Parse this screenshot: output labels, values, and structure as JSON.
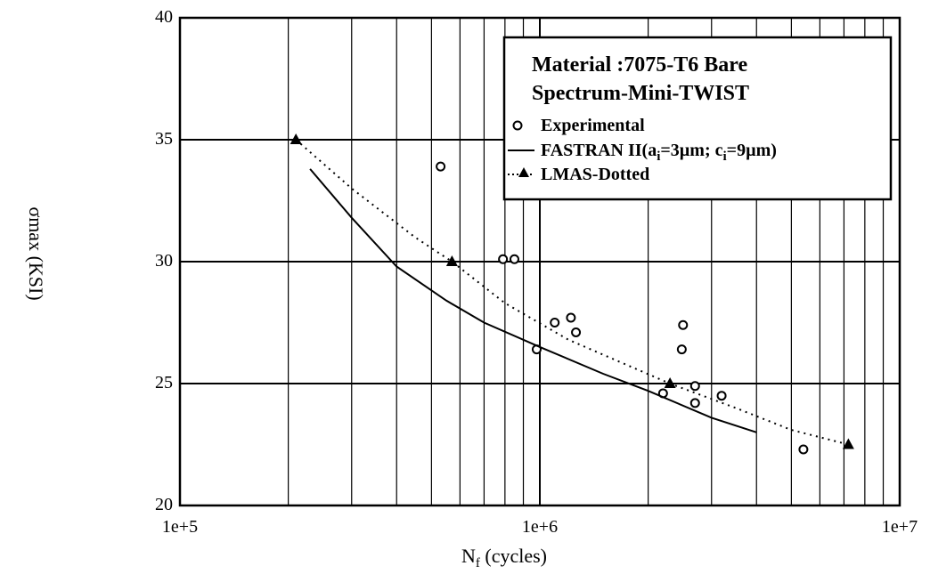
{
  "chart_data": {
    "type": "scatter",
    "title": "",
    "xlabel": "N",
    "xlabel_sub": "f",
    "xlabel_rest": " (cycles)",
    "ylabel": "σmax (KSI)",
    "xscale": "log",
    "xlim": [
      100000,
      10000000
    ],
    "ylim": [
      20,
      40
    ],
    "x_ticks": [
      100000,
      1000000,
      10000000
    ],
    "x_tick_labels": [
      "1e+5",
      "1e+6",
      "1e+7"
    ],
    "y_ticks": [
      20,
      25,
      30,
      35,
      40
    ],
    "y_tick_labels": [
      "20",
      "25",
      "30",
      "35",
      "40"
    ],
    "grid": true,
    "legend_position": "top-right",
    "legend": {
      "title_line1": "Material :7075-T6 Bare",
      "title_line2": "Spectrum-Mini-TWIST",
      "entries": [
        {
          "key": "experimental",
          "label": "Experimental",
          "marker": "open-circle"
        },
        {
          "key": "fastran",
          "label": "FASTRAN II(a",
          "sub1": "i",
          "mid": "=3µm; c",
          "sub2": "i",
          "end": "=9µm)",
          "marker": "solid-line"
        },
        {
          "key": "lmas",
          "label": "LMAS-Dotted",
          "marker": "dotted-triangle"
        }
      ]
    },
    "series": [
      {
        "name": "Experimental",
        "style": "open-circle",
        "points": [
          [
            530000,
            33.9
          ],
          [
            790000,
            30.1
          ],
          [
            850000,
            30.1
          ],
          [
            980000,
            26.4
          ],
          [
            1100000,
            27.5
          ],
          [
            1220000,
            27.7
          ],
          [
            1260000,
            27.1
          ],
          [
            2200000,
            24.6
          ],
          [
            2500000,
            27.4
          ],
          [
            2480000,
            26.4
          ],
          [
            2700000,
            24.9
          ],
          [
            2700000,
            24.2
          ],
          [
            3200000,
            24.5
          ],
          [
            5400000,
            22.3
          ]
        ]
      },
      {
        "name": "FASTRAN II(ai=3µm; ci=9µm)",
        "style": "solid-line",
        "points": [
          [
            230000,
            33.8
          ],
          [
            300000,
            31.8
          ],
          [
            400000,
            29.8
          ],
          [
            550000,
            28.4
          ],
          [
            700000,
            27.5
          ],
          [
            1000000,
            26.5
          ],
          [
            1500000,
            25.4
          ],
          [
            2000000,
            24.7
          ],
          [
            3000000,
            23.6
          ],
          [
            4000000,
            23.0
          ]
        ]
      },
      {
        "name": "LMAS-Dotted",
        "style": "dotted-triangle",
        "points": [
          [
            210000,
            35.0
          ],
          [
            300000,
            33.0
          ],
          [
            450000,
            31.0
          ],
          [
            570000,
            30.0
          ],
          [
            800000,
            28.3
          ],
          [
            1200000,
            26.8
          ],
          [
            2300000,
            25.0
          ],
          [
            3500000,
            24.0
          ],
          [
            5000000,
            23.1
          ],
          [
            7200000,
            22.5
          ]
        ],
        "markers": [
          [
            210000,
            35.0
          ],
          [
            570000,
            30.0
          ],
          [
            2300000,
            25.0
          ],
          [
            7200000,
            22.5
          ]
        ]
      }
    ]
  }
}
